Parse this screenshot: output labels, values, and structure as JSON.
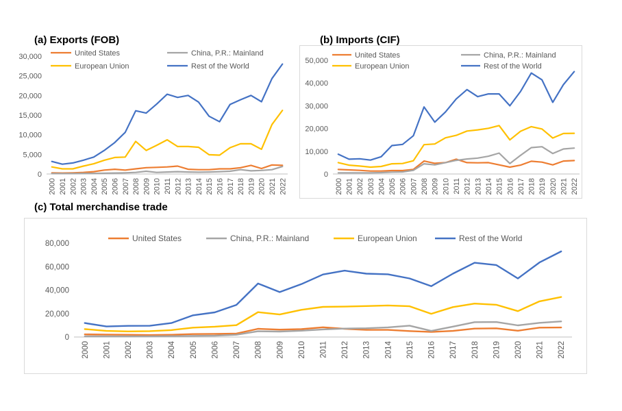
{
  "colors": {
    "United States": "#ED7D31",
    "China, P.R.: Mainland": "#A5A5A5",
    "European Union": "#FFC000",
    "Rest of the World": "#4472C4",
    "gridline": "#d9d9d9",
    "axis": "#bfbfbf"
  },
  "chart_data": [
    {
      "type": "line",
      "title": "(a)  Exports (FOB)",
      "x": [
        "2000",
        "2001",
        "2002",
        "2003",
        "2004",
        "2005",
        "2006",
        "2007",
        "2008",
        "2009",
        "2010",
        "2011",
        "2012",
        "2013",
        "2014",
        "2015",
        "2016",
        "2017",
        "2018",
        "2019",
        "2020",
        "2021",
        "2022"
      ],
      "ylim": [
        0,
        30000
      ],
      "yticks": [
        0,
        5000,
        10000,
        15000,
        20000,
        25000,
        30000
      ],
      "ytick_labels": [
        "0",
        "5,000",
        "10,000",
        "15,000",
        "20,000",
        "25,000",
        "30,000"
      ],
      "grid": false,
      "legend": "top, two columns",
      "series": [
        {
          "name": "United States",
          "values": [
            300,
            250,
            300,
            400,
            600,
            1000,
            1200,
            1000,
            1300,
            1600,
            1700,
            1800,
            2000,
            1200,
            1100,
            1100,
            1300,
            1300,
            1600,
            2200,
            1400,
            2300,
            2200
          ]
        },
        {
          "name": "China, P.R.: Mainland",
          "values": [
            100,
            100,
            100,
            150,
            150,
            200,
            250,
            300,
            400,
            700,
            400,
            500,
            600,
            500,
            450,
            500,
            600,
            700,
            1100,
            800,
            900,
            1100,
            1900
          ]
        },
        {
          "name": "European Union",
          "values": [
            1800,
            1300,
            1300,
            2000,
            2600,
            3500,
            4200,
            4300,
            8300,
            6000,
            7300,
            8700,
            7000,
            7000,
            6800,
            4900,
            4800,
            6700,
            7700,
            7700,
            6300,
            12600,
            16200
          ]
        },
        {
          "name": "Rest of the World",
          "values": [
            3200,
            2500,
            2800,
            3500,
            4300,
            6000,
            8000,
            10600,
            16100,
            15500,
            17800,
            20300,
            19500,
            20000,
            18300,
            14700,
            13300,
            17700,
            18900,
            20000,
            18400,
            24300,
            28000
          ]
        }
      ]
    },
    {
      "type": "line",
      "title": "(b)  Imports (CIF)",
      "x": [
        "2000",
        "2001",
        "2002",
        "2003",
        "2004",
        "2005",
        "2006",
        "2007",
        "2008",
        "2009",
        "2010",
        "2011",
        "2012",
        "2013",
        "2014",
        "2015",
        "2016",
        "2017",
        "2018",
        "2019",
        "2020",
        "2021",
        "2022"
      ],
      "ylim": [
        0,
        50000
      ],
      "yticks": [
        0,
        10000,
        20000,
        30000,
        40000,
        50000
      ],
      "ytick_labels": [
        "0",
        "10,000",
        "20,000",
        "30,000",
        "40,000",
        "50,000"
      ],
      "grid": false,
      "legend": "top, two columns",
      "series": [
        {
          "name": "United States",
          "values": [
            2000,
            1800,
            1600,
            1300,
            1300,
            1500,
            1500,
            2000,
            5700,
            4700,
            5000,
            6500,
            5000,
            4900,
            5000,
            4000,
            3000,
            3900,
            5600,
            5200,
            4000,
            5700,
            5900
          ]
        },
        {
          "name": "China, P.R.: Mainland",
          "values": [
            500,
            500,
            500,
            500,
            600,
            800,
            900,
            1600,
            4500,
            4000,
            5000,
            6000,
            6600,
            7000,
            7800,
            9200,
            4600,
            8200,
            11600,
            12000,
            9000,
            11000,
            11400
          ]
        },
        {
          "name": "European Union",
          "values": [
            5000,
            3900,
            3500,
            3000,
            3300,
            4500,
            4600,
            5800,
            12900,
            13200,
            15900,
            17000,
            18900,
            19400,
            20100,
            21300,
            15000,
            18800,
            20800,
            19800,
            15800,
            17800,
            17900
          ]
        },
        {
          "name": "Rest of the World",
          "values": [
            8700,
            6500,
            6700,
            6100,
            7600,
            12500,
            13000,
            16800,
            29500,
            22800,
            27300,
            33000,
            37100,
            34000,
            35200,
            35200,
            30000,
            36300,
            44400,
            41400,
            31500,
            39300,
            45000
          ]
        }
      ]
    },
    {
      "type": "line",
      "title": "(c)  Total merchandise trade",
      "x": [
        "2000",
        "2001",
        "2002",
        "2003",
        "2004",
        "2005",
        "2006",
        "2007",
        "2008",
        "2009",
        "2010",
        "2011",
        "2012",
        "2013",
        "2014",
        "2015",
        "2016",
        "2017",
        "2018",
        "2019",
        "2020",
        "2021",
        "2022"
      ],
      "ylim": [
        0,
        80000
      ],
      "yticks": [
        0,
        20000,
        40000,
        60000,
        80000
      ],
      "ytick_labels": [
        "0",
        "20,000",
        "40,000",
        "60,000",
        "80,000"
      ],
      "grid": false,
      "legend": "top, single row",
      "series": [
        {
          "name": "United States",
          "values": [
            2300,
            2100,
            1900,
            1700,
            1900,
            2500,
            2700,
            3000,
            7000,
            6300,
            6700,
            8300,
            7000,
            6100,
            6100,
            5100,
            4300,
            5200,
            7200,
            7400,
            5400,
            8000,
            8100
          ]
        },
        {
          "name": "China, P.R.: Mainland",
          "values": [
            600,
            600,
            600,
            650,
            750,
            1000,
            1150,
            1900,
            4900,
            4700,
            5400,
            6500,
            7200,
            7500,
            8250,
            9700,
            5200,
            8900,
            12700,
            12800,
            9900,
            12100,
            13300
          ]
        },
        {
          "name": "European Union",
          "values": [
            6800,
            5200,
            4800,
            5000,
            5900,
            8000,
            8800,
            10100,
            21200,
            19200,
            23200,
            25700,
            25900,
            26400,
            26900,
            26200,
            19800,
            25500,
            28500,
            27500,
            22100,
            30400,
            34100
          ]
        },
        {
          "name": "Rest of the World",
          "values": [
            11900,
            9000,
            9500,
            9600,
            11900,
            18500,
            21000,
            27400,
            45600,
            38300,
            45100,
            53300,
            56600,
            54000,
            53500,
            49900,
            43300,
            54000,
            63300,
            61400,
            49900,
            63600,
            73000
          ]
        }
      ]
    }
  ]
}
